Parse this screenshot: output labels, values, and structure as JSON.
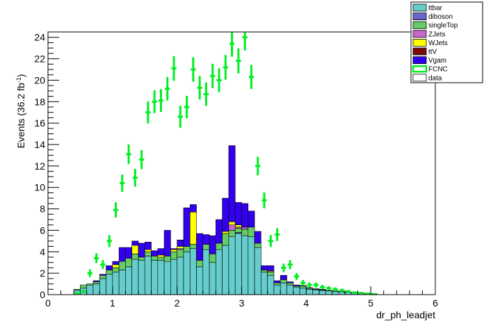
{
  "chart_data": {
    "type": "bar",
    "stacked": true,
    "xlabel": "dr_ph_leadjet",
    "ylabel": "Events (36.2 fb",
    "ylabel_sup": "-1",
    "ylabel_close": ")",
    "xlim": [
      0,
      6
    ],
    "ylim": [
      0,
      24.5
    ],
    "bin_width": 0.1,
    "x_ticks": [
      "0",
      "1",
      "2",
      "3",
      "4",
      "5",
      "6"
    ],
    "y_ticks": [
      "0",
      "2",
      "4",
      "6",
      "8",
      "10",
      "12",
      "14",
      "16",
      "18",
      "20",
      "22",
      "24"
    ],
    "bin_starts": [
      0.4,
      0.5,
      0.6,
      0.7,
      0.8,
      0.9,
      1.0,
      1.1,
      1.2,
      1.3,
      1.4,
      1.5,
      1.6,
      1.7,
      1.8,
      1.9,
      2.0,
      2.1,
      2.2,
      2.3,
      2.4,
      2.5,
      2.6,
      2.7,
      2.8,
      2.9,
      3.0,
      3.1,
      3.2,
      3.3,
      3.4,
      3.5,
      3.6,
      3.7,
      3.8,
      3.9,
      4.0,
      4.1,
      4.2,
      4.3,
      4.4,
      4.5,
      4.6,
      4.7,
      4.8,
      4.9,
      5.0
    ],
    "series": [
      {
        "name": "ttbar",
        "color": "#66cccc",
        "values": [
          0.4,
          0.6,
          0.9,
          1.0,
          1.5,
          1.9,
          2.1,
          2.3,
          2.6,
          3.3,
          3.2,
          3.6,
          3.2,
          3.2,
          3.1,
          3.3,
          3.5,
          4.0,
          4.3,
          2.6,
          4.2,
          3.0,
          4.2,
          4.6,
          5.4,
          5.7,
          5.5,
          5.4,
          4.4,
          2.1,
          1.8,
          0.9,
          1.1,
          0.9,
          0.7,
          0.6,
          0.5,
          0.45,
          0.4,
          0.35,
          0.3,
          0.25,
          0.2,
          0.15,
          0.1,
          0.08,
          0.05
        ]
      },
      {
        "name": "diboson",
        "color": "#6666cc",
        "values": [
          0,
          0,
          0,
          0,
          0,
          0,
          0,
          0,
          0,
          0,
          0,
          0,
          0,
          0,
          0,
          0,
          0,
          0,
          0,
          0,
          0,
          0,
          0,
          0,
          0,
          0.1,
          0,
          0,
          0,
          0,
          0,
          0,
          0,
          0,
          0,
          0,
          0,
          0,
          0,
          0,
          0,
          0,
          0,
          0,
          0,
          0,
          0
        ]
      },
      {
        "name": "singleTop",
        "color": "#66cc66",
        "values": [
          0.1,
          0.3,
          0.1,
          0.2,
          0.3,
          0.4,
          0.4,
          0.8,
          0.8,
          0.5,
          0.3,
          0.4,
          0.4,
          0.3,
          0.5,
          0.7,
          0.7,
          0.5,
          0.4,
          0.6,
          0.5,
          0.8,
          0.6,
          1.1,
          0.6,
          0.4,
          0.6,
          0.9,
          0.4,
          0.2,
          0.3,
          0.2,
          0.3,
          0.2,
          0.1,
          0.2,
          0.1,
          0.05,
          0.05,
          0.05,
          0.05,
          0.03,
          0.03,
          0.02,
          0.02,
          0.01,
          0.01
        ]
      },
      {
        "name": "ZJets",
        "color": "#cc66cc",
        "values": [
          0,
          0,
          0,
          0,
          0,
          0,
          0,
          0,
          0,
          0,
          0,
          0,
          0,
          0,
          0,
          0,
          0.1,
          0,
          0,
          0,
          0,
          0,
          0,
          0,
          0.5,
          0.1,
          0.2,
          0,
          0,
          0,
          0,
          0,
          0,
          0,
          0,
          0,
          0,
          0,
          0,
          0,
          0,
          0,
          0,
          0,
          0,
          0,
          0
        ]
      },
      {
        "name": "WJets",
        "color": "#ffff00",
        "values": [
          0,
          0,
          0,
          0,
          0,
          0,
          0.3,
          0,
          0,
          0.8,
          0,
          0.2,
          0,
          0.2,
          0,
          0.2,
          0.2,
          0,
          3.0,
          0,
          0,
          0,
          0,
          0.2,
          0.3,
          0.2,
          0,
          0,
          0,
          0,
          0.1,
          0,
          0,
          0,
          0,
          0,
          0,
          0,
          0,
          0,
          0,
          0,
          0,
          0,
          0,
          0,
          0
        ]
      },
      {
        "name": "ttV",
        "color": "#7a0a0a",
        "values": [
          0,
          0,
          0,
          0,
          0,
          0,
          0,
          0,
          0,
          0,
          0,
          0,
          0,
          0,
          0,
          0,
          0,
          0,
          0,
          0,
          0,
          0,
          0,
          0,
          0,
          0,
          0,
          0,
          0,
          0,
          0,
          0,
          0,
          0,
          0,
          0,
          0,
          0,
          0,
          0,
          0,
          0,
          0,
          0,
          0,
          0,
          0
        ]
      },
      {
        "name": "Vgam",
        "color": "#3300ee",
        "values": [
          0,
          0,
          0,
          0.1,
          0.1,
          0.4,
          0.3,
          1.3,
          1.0,
          0.4,
          1.3,
          0.7,
          0.5,
          0.6,
          2.4,
          0.1,
          0.6,
          3.6,
          0.7,
          2.5,
          0.9,
          1.7,
          2.2,
          3.1,
          7.1,
          2.1,
          2.2,
          1.5,
          1.1,
          0.4,
          0.5,
          0.2,
          0.4,
          0.1,
          0.1,
          0.05,
          0.05,
          0.05,
          0.05,
          0,
          0,
          0,
          0,
          0,
          0,
          0,
          0
        ]
      },
      {
        "name": "FCNC",
        "color": "#00ee22",
        "style": "markers-with-error-bars",
        "values": [
          0.1,
          0.3,
          2.0,
          3.4,
          2.8,
          5.0,
          7.9,
          10.4,
          13.1,
          10.9,
          12.6,
          17.0,
          18.0,
          18.1,
          19.2,
          21.1,
          16.6,
          17.5,
          21.0,
          19.3,
          18.7,
          20.4,
          20.0,
          21.2,
          23.4,
          21.8,
          24.0,
          20.3,
          12.0,
          8.8,
          5.0,
          5.6,
          2.5,
          2.8,
          1.7,
          1.1,
          0.9,
          0.9,
          0.7,
          0.6,
          0.5,
          0.4,
          0.3,
          0.2,
          0.15,
          0.1,
          0.05
        ]
      },
      {
        "name": "data",
        "color": "#ffffff",
        "values": []
      }
    ],
    "legend": {
      "placement": "top-right",
      "entries": [
        "ttbar",
        "diboson",
        "singleTop",
        "ZJets",
        "WJets",
        "ttV",
        "Vgam",
        "FCNC",
        "data"
      ]
    }
  }
}
